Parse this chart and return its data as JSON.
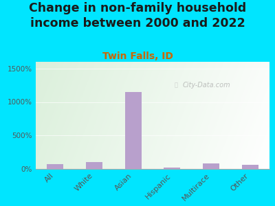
{
  "title": "Change in non-family household\nincome between 2000 and 2022",
  "subtitle": "Twin Falls, ID",
  "categories": [
    "All",
    "White",
    "Asian",
    "Hispanic",
    "Multirace",
    "Other"
  ],
  "values": [
    75,
    100,
    1150,
    20,
    80,
    65
  ],
  "bar_color": "#b8a0cc",
  "title_color": "#1a1a1a",
  "subtitle_color": "#cc6600",
  "background_outer": "#00e5ff",
  "yticks": [
    0,
    500,
    1000,
    1500
  ],
  "ytick_labels": [
    "0%",
    "500%",
    "1000%",
    "1500%"
  ],
  "ylim": [
    0,
    1600
  ],
  "watermark": "City-Data.com",
  "title_fontsize": 12.5,
  "subtitle_fontsize": 10,
  "tick_color": "#555555"
}
